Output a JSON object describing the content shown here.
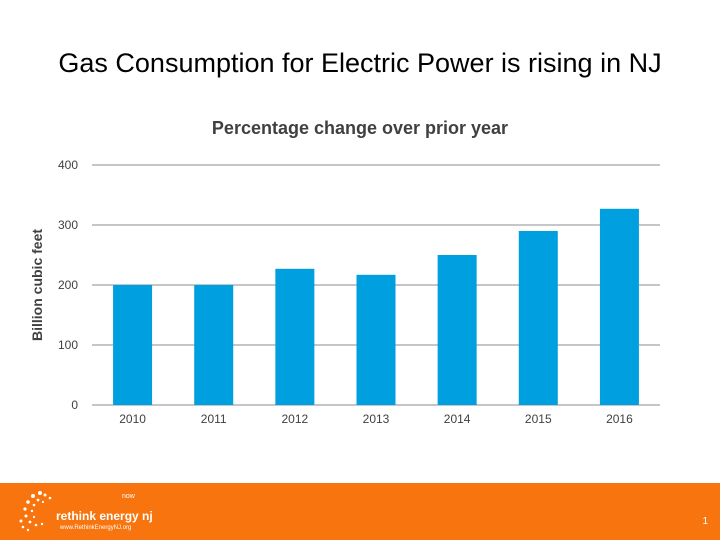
{
  "slide": {
    "title": "Gas Consumption for Electric Power is rising in NJ",
    "page_number": "1"
  },
  "footer": {
    "logo_text": "rethink energy",
    "logo_suffix": "nj",
    "logo_now": "now",
    "logo_url": "www.RethinkEnergyNJ.org",
    "background_color": "#f7740e"
  },
  "chart_data": {
    "type": "bar",
    "title": "Percentage change over prior year",
    "xlabel": "",
    "ylabel": "Billion cubic feet",
    "categories": [
      "2010",
      "2011",
      "2012",
      "2013",
      "2014",
      "2015",
      "2016"
    ],
    "values": [
      200,
      200,
      227,
      217,
      250,
      290,
      327
    ],
    "ylim": [
      0,
      400
    ],
    "yticks": [
      0,
      100,
      200,
      300,
      400
    ],
    "grid": true,
    "legend": "none",
    "bar_color": "#009fe0"
  }
}
